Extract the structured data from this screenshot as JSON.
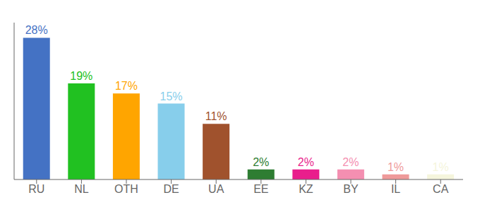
{
  "chart_data": {
    "type": "bar",
    "categories": [
      "RU",
      "NL",
      "OTH",
      "DE",
      "UA",
      "EE",
      "KZ",
      "BY",
      "IL",
      "CA"
    ],
    "values": [
      28,
      19,
      17,
      15,
      11,
      2,
      2,
      2,
      1,
      1
    ],
    "value_labels": [
      "28%",
      "19%",
      "17%",
      "15%",
      "11%",
      "2%",
      "2%",
      "2%",
      "1%",
      "1%"
    ],
    "colors": [
      "#4472C4",
      "#21C121",
      "#FFA500",
      "#87CEEB",
      "#A0522D",
      "#2E7D32",
      "#E91E8C",
      "#F48FB1",
      "#EF9A9A",
      "#F5F5DC"
    ],
    "ylim": [
      0,
      31
    ],
    "data_labels": true,
    "tick_labels": "x",
    "grid": false
  }
}
